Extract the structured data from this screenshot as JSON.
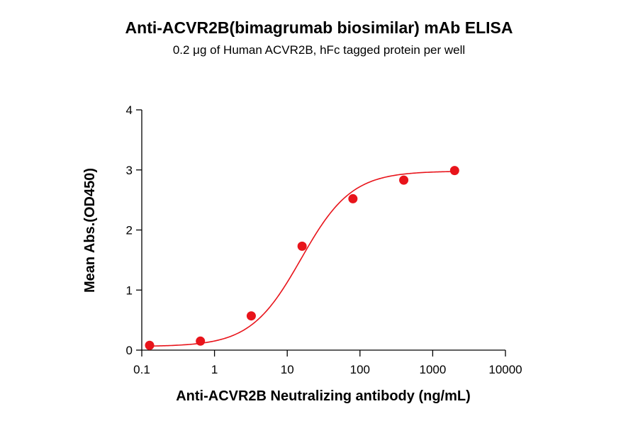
{
  "chart_data": {
    "type": "scatter",
    "title": "Anti-ACVR2B(bimagrumab biosimilar) mAb ELISA",
    "subtitle": "0.2 μg of Human ACVR2B, hFc tagged protein per well",
    "xlabel": "Anti-ACVR2B Neutralizing antibody (ng/mL)",
    "ylabel": "Mean Abs.(OD450)",
    "x_scale": "log",
    "xlim": [
      0.1,
      10000
    ],
    "ylim": [
      0,
      4
    ],
    "x_ticks": [
      0.1,
      1,
      10,
      100,
      1000,
      10000
    ],
    "x_tick_labels": [
      "0.1",
      "1",
      "10",
      "100",
      "1000",
      "10000"
    ],
    "y_ticks": [
      0,
      1,
      2,
      3,
      4
    ],
    "y_tick_labels": [
      "0",
      "1",
      "2",
      "3",
      "4"
    ],
    "grid": false,
    "series": [
      {
        "x": [
          0.128,
          0.64,
          3.2,
          16,
          80,
          400,
          2000
        ],
        "y": [
          0.08,
          0.15,
          0.57,
          1.73,
          2.52,
          2.83,
          2.99
        ],
        "color": "#e8141b",
        "fit": "4PL sigmoid"
      }
    ],
    "fit_params": {
      "bottom": 0.06,
      "top": 2.98,
      "ec50": 15.5,
      "hill": 1.25
    }
  }
}
